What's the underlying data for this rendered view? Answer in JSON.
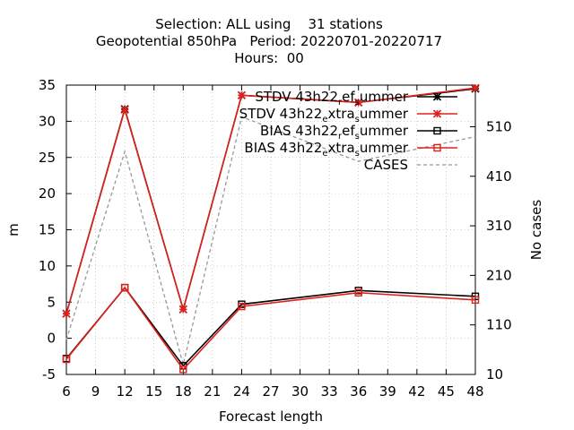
{
  "chart_data": {
    "type": "line",
    "title_lines": [
      "Selection: ALL using    31 stations",
      "Geopotential 850hPa   Period: 20220701-20220717",
      "Hours:  00"
    ],
    "xlabel": "Forecast length",
    "ylabel": "m",
    "y2label": "No cases",
    "x_ticks": [
      6,
      9,
      12,
      15,
      18,
      21,
      24,
      27,
      30,
      33,
      36,
      39,
      42,
      45,
      48
    ],
    "y_ticks": [
      -5,
      0,
      5,
      10,
      15,
      20,
      25,
      30,
      35
    ],
    "y2_ticks": [
      10,
      110,
      210,
      310,
      410,
      510
    ],
    "xlim": [
      6,
      48
    ],
    "ylim": [
      -5,
      35
    ],
    "y2lim": [
      10,
      594
    ],
    "legend_position": "top-right",
    "series": [
      {
        "key": "stdv_ref",
        "label_parts": [
          "STDV 43h22",
          "r",
          "ef",
          "s",
          "ummer"
        ],
        "color": "#000000",
        "marker": "star",
        "dashed": false,
        "x": [
          6,
          12,
          18,
          24,
          36,
          48
        ],
        "values": [
          3.4,
          31.7,
          4.0,
          33.6,
          32.6,
          34.5
        ]
      },
      {
        "key": "stdv_extra",
        "label_parts": [
          "STDV 43h22",
          "e",
          "xtra",
          "s",
          "ummer"
        ],
        "color": "#e0201b",
        "marker": "star",
        "dashed": false,
        "x": [
          6,
          12,
          18,
          24,
          36,
          48
        ],
        "values": [
          3.4,
          31.6,
          4.0,
          33.6,
          32.6,
          34.6
        ]
      },
      {
        "key": "bias_ref",
        "label_parts": [
          "BIAS 43h22",
          "r",
          "ef",
          "s",
          "ummer"
        ],
        "color": "#000000",
        "marker": "square",
        "dashed": false,
        "x": [
          6,
          12,
          18,
          24,
          36,
          48
        ],
        "values": [
          -2.8,
          7.0,
          -3.8,
          4.7,
          6.6,
          5.8
        ]
      },
      {
        "key": "bias_extra",
        "label_parts": [
          "BIAS 43h22",
          "e",
          "xtra",
          "s",
          "ummer"
        ],
        "color": "#e0201b",
        "marker": "square",
        "dashed": false,
        "x": [
          6,
          12,
          18,
          24,
          36,
          48
        ],
        "values": [
          -2.9,
          7.0,
          -4.3,
          4.4,
          6.3,
          5.3
        ]
      },
      {
        "key": "cases",
        "label_parts": [
          "CASES"
        ],
        "color": "#999999",
        "marker": "none",
        "dashed": true,
        "axis": "y2",
        "x": [
          6,
          12,
          18,
          24,
          36,
          48
        ],
        "values": [
          80,
          460,
          30,
          530,
          440,
          490
        ]
      }
    ]
  }
}
